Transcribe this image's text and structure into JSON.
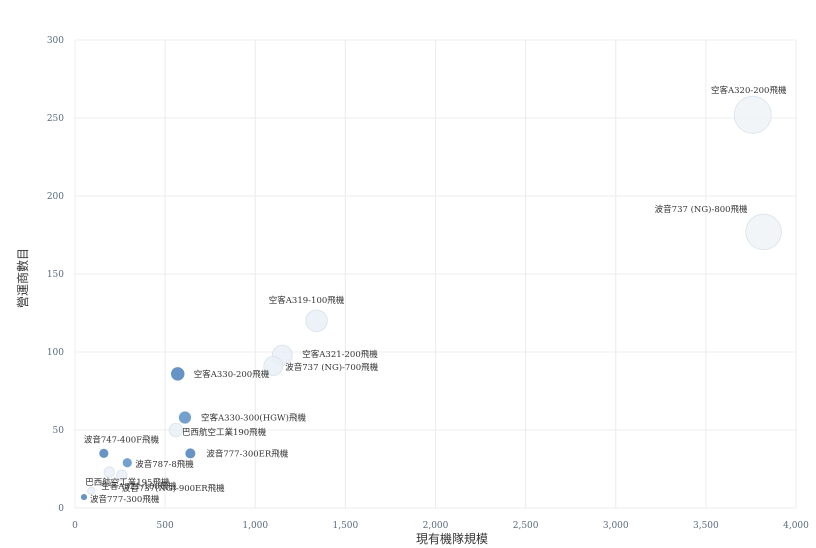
{
  "chart_data": {
    "type": "scatter",
    "xlabel": "現有機隊規模",
    "ylabel": "營運商數目",
    "xlim": [
      0,
      4000
    ],
    "ylim": [
      0,
      300
    ],
    "xticks": [
      "0",
      "500",
      "1,000",
      "1,500",
      "2,000",
      "2,500",
      "3,000",
      "3,500",
      "4,000"
    ],
    "yticks": [
      "0",
      "50",
      "100",
      "150",
      "200",
      "250",
      "300"
    ],
    "grid": true,
    "points": [
      {
        "label": "空客A320-200飛機",
        "x": 3760,
        "y": 252,
        "size": 3800,
        "color": "#eef3f7"
      },
      {
        "label": "波音737 (NG)-800飛機",
        "x": 3820,
        "y": 177,
        "size": 3500,
        "color": "#eef3f7"
      },
      {
        "label": "空客A319-100飛機",
        "x": 1340,
        "y": 120,
        "size": 1300,
        "color": "#e9f0f6"
      },
      {
        "label": "空客A321-200飛機",
        "x": 1150,
        "y": 98,
        "size": 1100,
        "color": "#e9f0f6"
      },
      {
        "label": "波音737 (NG)-700飛機",
        "x": 1100,
        "y": 91,
        "size": 1000,
        "color": "#e9f0f6"
      },
      {
        "label": "空客A330-200飛機",
        "x": 570,
        "y": 86,
        "size": 600,
        "color": "#5e8fc2"
      },
      {
        "label": "空客A330-300(HGW)飛機",
        "x": 610,
        "y": 58,
        "size": 500,
        "color": "#6d9bcb"
      },
      {
        "label": "巴西航空工業190飛機",
        "x": 560,
        "y": 50,
        "size": 500,
        "color": "#e9f0f6"
      },
      {
        "label": "波音747-400F飛機",
        "x": 160,
        "y": 35,
        "size": 300,
        "color": "#5e8fc2"
      },
      {
        "label": "波音777-300ER飛機",
        "x": 640,
        "y": 35,
        "size": 350,
        "color": "#5e8fc2"
      },
      {
        "label": "波音787-8飛機",
        "x": 290,
        "y": 29,
        "size": 300,
        "color": "#6d9bcb"
      },
      {
        "label": "巴西航空工業195飛機",
        "x": 190,
        "y": 23,
        "size": 300,
        "color": "#e9f0f6"
      },
      {
        "label": "波音737(NG)-900ER飛機",
        "x": 260,
        "y": 21,
        "size": 300,
        "color": "#e9f0f6"
      },
      {
        "label": "空客A321-100飛機",
        "x": 90,
        "y": 11,
        "size": 150,
        "color": "#e9f0f6"
      },
      {
        "label": "波音777-300飛機",
        "x": 50,
        "y": 7,
        "size": 150,
        "color": "#5e8fc2"
      }
    ]
  }
}
